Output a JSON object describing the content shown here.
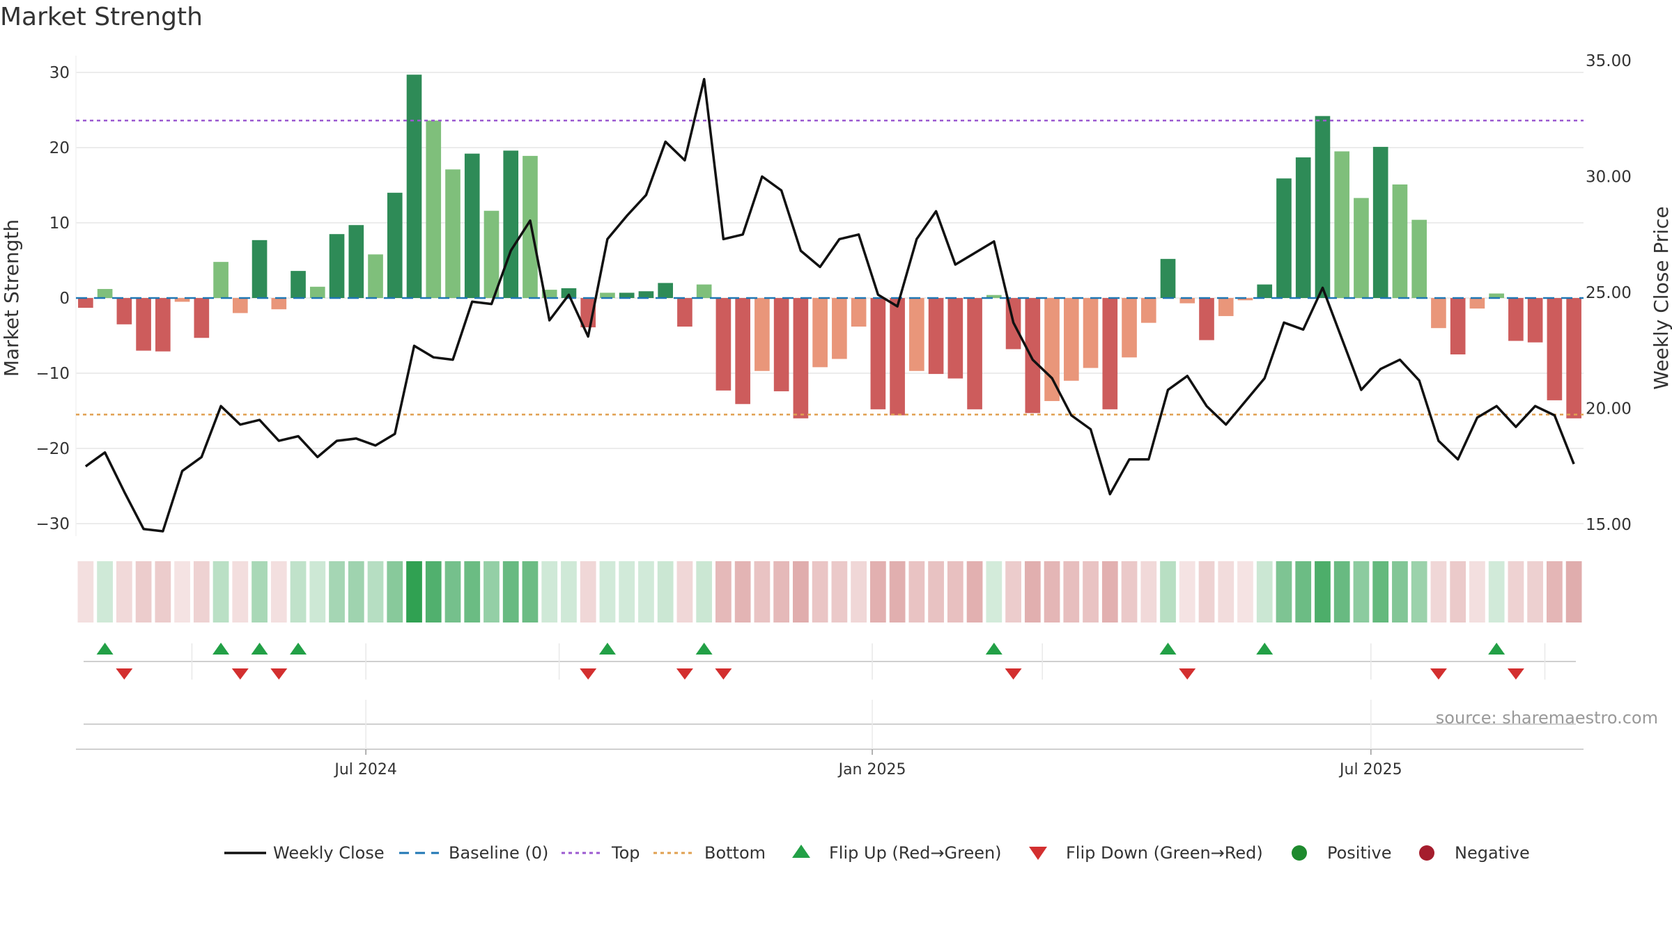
{
  "chart_data": {
    "type": "bar",
    "title": "Market Strength",
    "left_axis_label": "Market Strength",
    "right_axis_label": "Weekly Close Price",
    "left_ylim": [
      -30,
      30
    ],
    "left_ticks": [
      "30",
      "20",
      "10",
      "0",
      "−10",
      "−20",
      "−30"
    ],
    "left_tick_values": [
      30,
      20,
      10,
      0,
      -10,
      -20,
      -30
    ],
    "right_ylim": [
      15,
      35
    ],
    "right_ticks": [
      "35.00",
      "30.00",
      "25.00",
      "20.00",
      "15.00"
    ],
    "right_tick_values": [
      35,
      30,
      25,
      20,
      15
    ],
    "top_line": 23.6,
    "bottom_line": -15.5,
    "x_tick_labels": [
      "Jul 2024",
      "Jan 2025",
      "Jul 2025"
    ],
    "x_tick_weeks": [
      14.5,
      40.7,
      66.5
    ],
    "strength": [
      -1.3,
      1.2,
      -3.5,
      -7,
      -7.1,
      -0.5,
      -5.3,
      4.8,
      -2,
      7.7,
      -1.5,
      3.6,
      1.5,
      8.5,
      9.7,
      5.8,
      14,
      29.7,
      23.6,
      17.1,
      19.2,
      11.6,
      19.6,
      18.9,
      1.1,
      1.3,
      -3.9,
      0.7,
      0.7,
      0.9,
      2,
      -3.8,
      1.8,
      -12.3,
      -14.1,
      -9.7,
      -12.4,
      -16,
      -9.2,
      -8.1,
      -3.8,
      -14.8,
      -15.6,
      -9.7,
      -10.1,
      -10.7,
      -14.8,
      0.4,
      -6.8,
      -15.3,
      -13.7,
      -11,
      -9.3,
      -14.8,
      -7.9,
      -3.3,
      5.2,
      -0.7,
      -5.6,
      -2.4,
      -0.3,
      1.8,
      15.9,
      18.7,
      24.2,
      19.5,
      13.3,
      20.1,
      15.1,
      10.4,
      -4,
      -7.5,
      -1.4,
      0.6,
      -5.7,
      -5.9,
      -13.6,
      -16
    ],
    "close": [
      17.5,
      18.1,
      16.4,
      14.8,
      14.7,
      17.3,
      17.9,
      20.1,
      19.3,
      19.5,
      18.6,
      18.8,
      17.9,
      18.6,
      18.7,
      18.4,
      18.9,
      22.7,
      22.2,
      22.1,
      24.6,
      24.5,
      26.8,
      28.1,
      23.8,
      24.9,
      23.1,
      27.3,
      28.3,
      29.2,
      31.5,
      30.7,
      34.2,
      27.3,
      27.5,
      30,
      29.4,
      26.8,
      26.1,
      27.3,
      27.5,
      24.9,
      24.4,
      27.3,
      28.5,
      26.2,
      26.7,
      27.2,
      23.7,
      22.1,
      21.3,
      19.7,
      19.1,
      16.3,
      17.8,
      17.8,
      20.8,
      21.4,
      20.1,
      19.3,
      20.3,
      21.3,
      23.7,
      23.4,
      25.2,
      23,
      20.8,
      21.7,
      22.1,
      21.2,
      18.6,
      17.8,
      19.6,
      20.1,
      19.2,
      20.1,
      19.7,
      17.6
    ],
    "series_names": {
      "weekly_close": "Weekly Close",
      "baseline": "Baseline (0)",
      "top": "Top",
      "bottom": "Bottom",
      "flip_up": "Flip Up (Red→Green)",
      "flip_down": "Flip Down (Green→Red)",
      "positive": "Positive",
      "negative": "Negative"
    },
    "flip_up_weeks": [
      1,
      7,
      9,
      11,
      27,
      32,
      47,
      56,
      61,
      73
    ],
    "flip_down_weeks": [
      2,
      8,
      10,
      26,
      31,
      33,
      48,
      57,
      70,
      74
    ]
  },
  "source_text": "source: sharemaestro.com",
  "colors": {
    "strong_green": "#2e8b57",
    "light_green": "#7fbf7b",
    "strong_red": "#cd5c5c",
    "light_red": "#e9967a",
    "baseline": "#1f77b4",
    "top": "#9b59d0",
    "bottom": "#e0a050",
    "close_line": "#111111",
    "flip_up": "#22a046",
    "flip_down": "#d32f2f",
    "positive": "#1e8a2e",
    "negative": "#a51d2d"
  }
}
